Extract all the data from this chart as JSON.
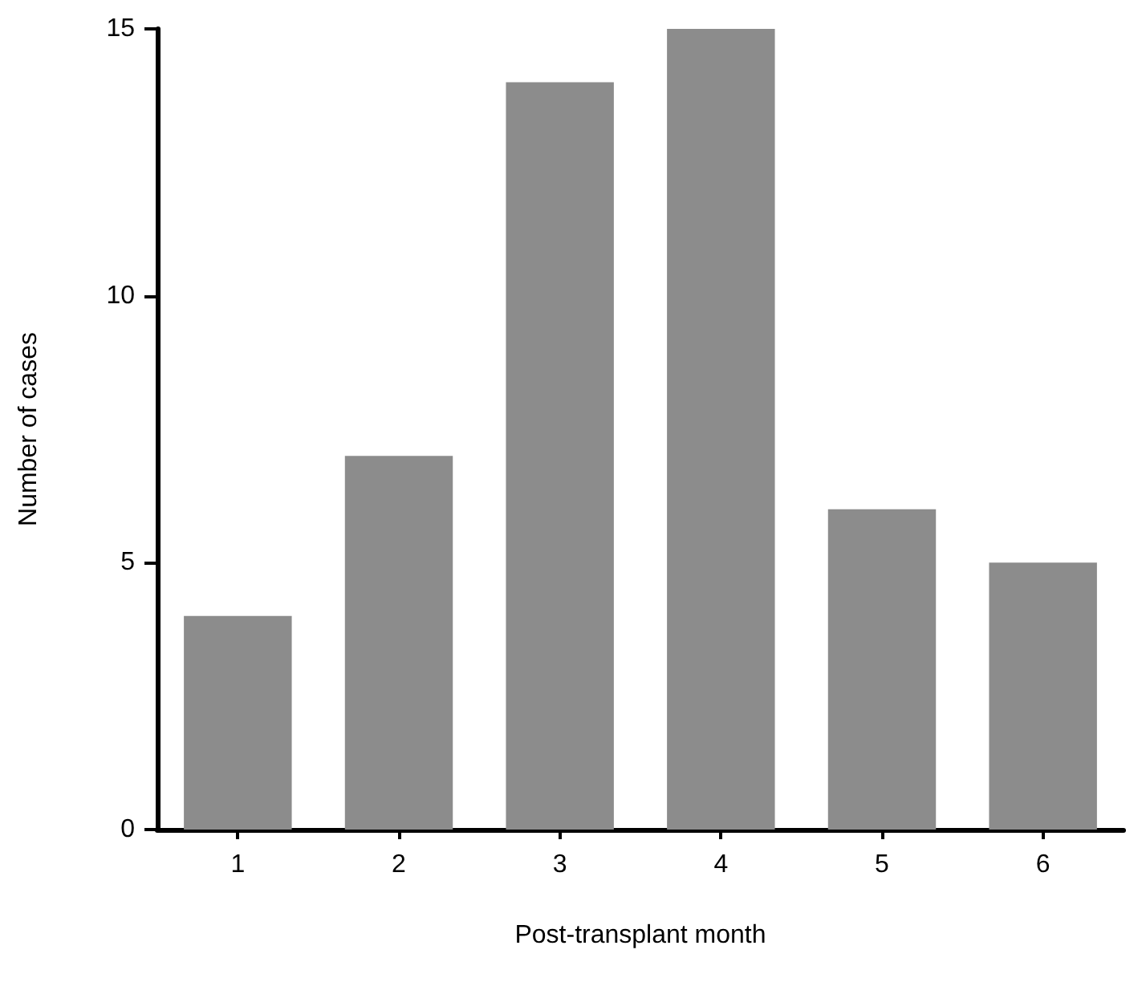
{
  "chart_data": {
    "type": "bar",
    "xlabel": "Post-transplant month",
    "ylabel": "Number of cases",
    "categories": [
      "1",
      "2",
      "3",
      "4",
      "5",
      "6"
    ],
    "values": [
      4,
      7,
      14,
      15,
      6,
      5
    ],
    "color": "#8c8c8c",
    "ylim": [
      0,
      15
    ],
    "yticks": [
      0,
      5,
      10,
      15
    ],
    "grid": false
  }
}
